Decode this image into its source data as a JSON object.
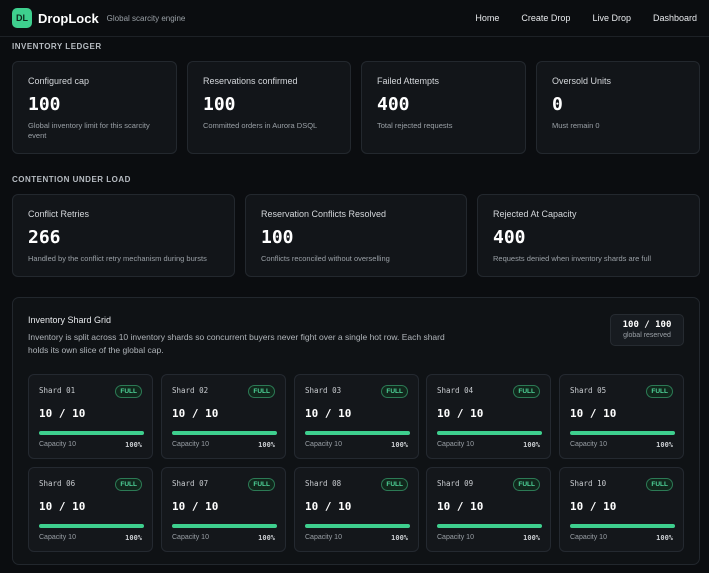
{
  "header": {
    "logo": "DL",
    "brand": "DropLock",
    "tagline": "Global scarcity engine",
    "nav": [
      "Home",
      "Create Drop",
      "Live Drop",
      "Dashboard"
    ]
  },
  "ledger": {
    "label": "INVENTORY LEDGER",
    "cards": [
      {
        "title": "Configured cap",
        "value": "100",
        "desc": "Global inventory limit for this scarcity event"
      },
      {
        "title": "Reservations confirmed",
        "value": "100",
        "desc": "Committed orders in Aurora DSQL"
      },
      {
        "title": "Failed Attempts",
        "value": "400",
        "desc": "Total rejected requests"
      },
      {
        "title": "Oversold Units",
        "value": "0",
        "desc": "Must remain 0"
      }
    ]
  },
  "contention": {
    "label": "CONTENTION UNDER LOAD",
    "cards": [
      {
        "title": "Conflict Retries",
        "value": "266",
        "desc": "Handled by the conflict retry mechanism during bursts"
      },
      {
        "title": "Reservation Conflicts Resolved",
        "value": "100",
        "desc": "Conflicts reconciled without overselling"
      },
      {
        "title": "Rejected At Capacity",
        "value": "400",
        "desc": "Requests denied when inventory shards are full"
      }
    ]
  },
  "shard_grid": {
    "title": "Inventory Shard Grid",
    "desc": "Inventory is split across 10 inventory shards so concurrent buyers never fight over a single hot row. Each shard holds its own slice of the global cap.",
    "reserved_value": "100 / 100",
    "reserved_label": "global reserved",
    "accent": "#3ecf8e",
    "shards": [
      {
        "name": "Shard 01",
        "badge": "FULL",
        "value": "10 / 10",
        "capacity": "Capacity 10",
        "pct": "100%",
        "fill": 1.0
      },
      {
        "name": "Shard 02",
        "badge": "FULL",
        "value": "10 / 10",
        "capacity": "Capacity 10",
        "pct": "100%",
        "fill": 1.0
      },
      {
        "name": "Shard 03",
        "badge": "FULL",
        "value": "10 / 10",
        "capacity": "Capacity 10",
        "pct": "100%",
        "fill": 1.0
      },
      {
        "name": "Shard 04",
        "badge": "FULL",
        "value": "10 / 10",
        "capacity": "Capacity 10",
        "pct": "100%",
        "fill": 1.0
      },
      {
        "name": "Shard 05",
        "badge": "FULL",
        "value": "10 / 10",
        "capacity": "Capacity 10",
        "pct": "100%",
        "fill": 1.0
      },
      {
        "name": "Shard 06",
        "badge": "FULL",
        "value": "10 / 10",
        "capacity": "Capacity 10",
        "pct": "100%",
        "fill": 1.0
      },
      {
        "name": "Shard 07",
        "badge": "FULL",
        "value": "10 / 10",
        "capacity": "Capacity 10",
        "pct": "100%",
        "fill": 1.0
      },
      {
        "name": "Shard 08",
        "badge": "FULL",
        "value": "10 / 10",
        "capacity": "Capacity 10",
        "pct": "100%",
        "fill": 1.0
      },
      {
        "name": "Shard 09",
        "badge": "FULL",
        "value": "10 / 10",
        "capacity": "Capacity 10",
        "pct": "100%",
        "fill": 1.0
      },
      {
        "name": "Shard 10",
        "badge": "FULL",
        "value": "10 / 10",
        "capacity": "Capacity 10",
        "pct": "100%",
        "fill": 1.0
      }
    ]
  }
}
